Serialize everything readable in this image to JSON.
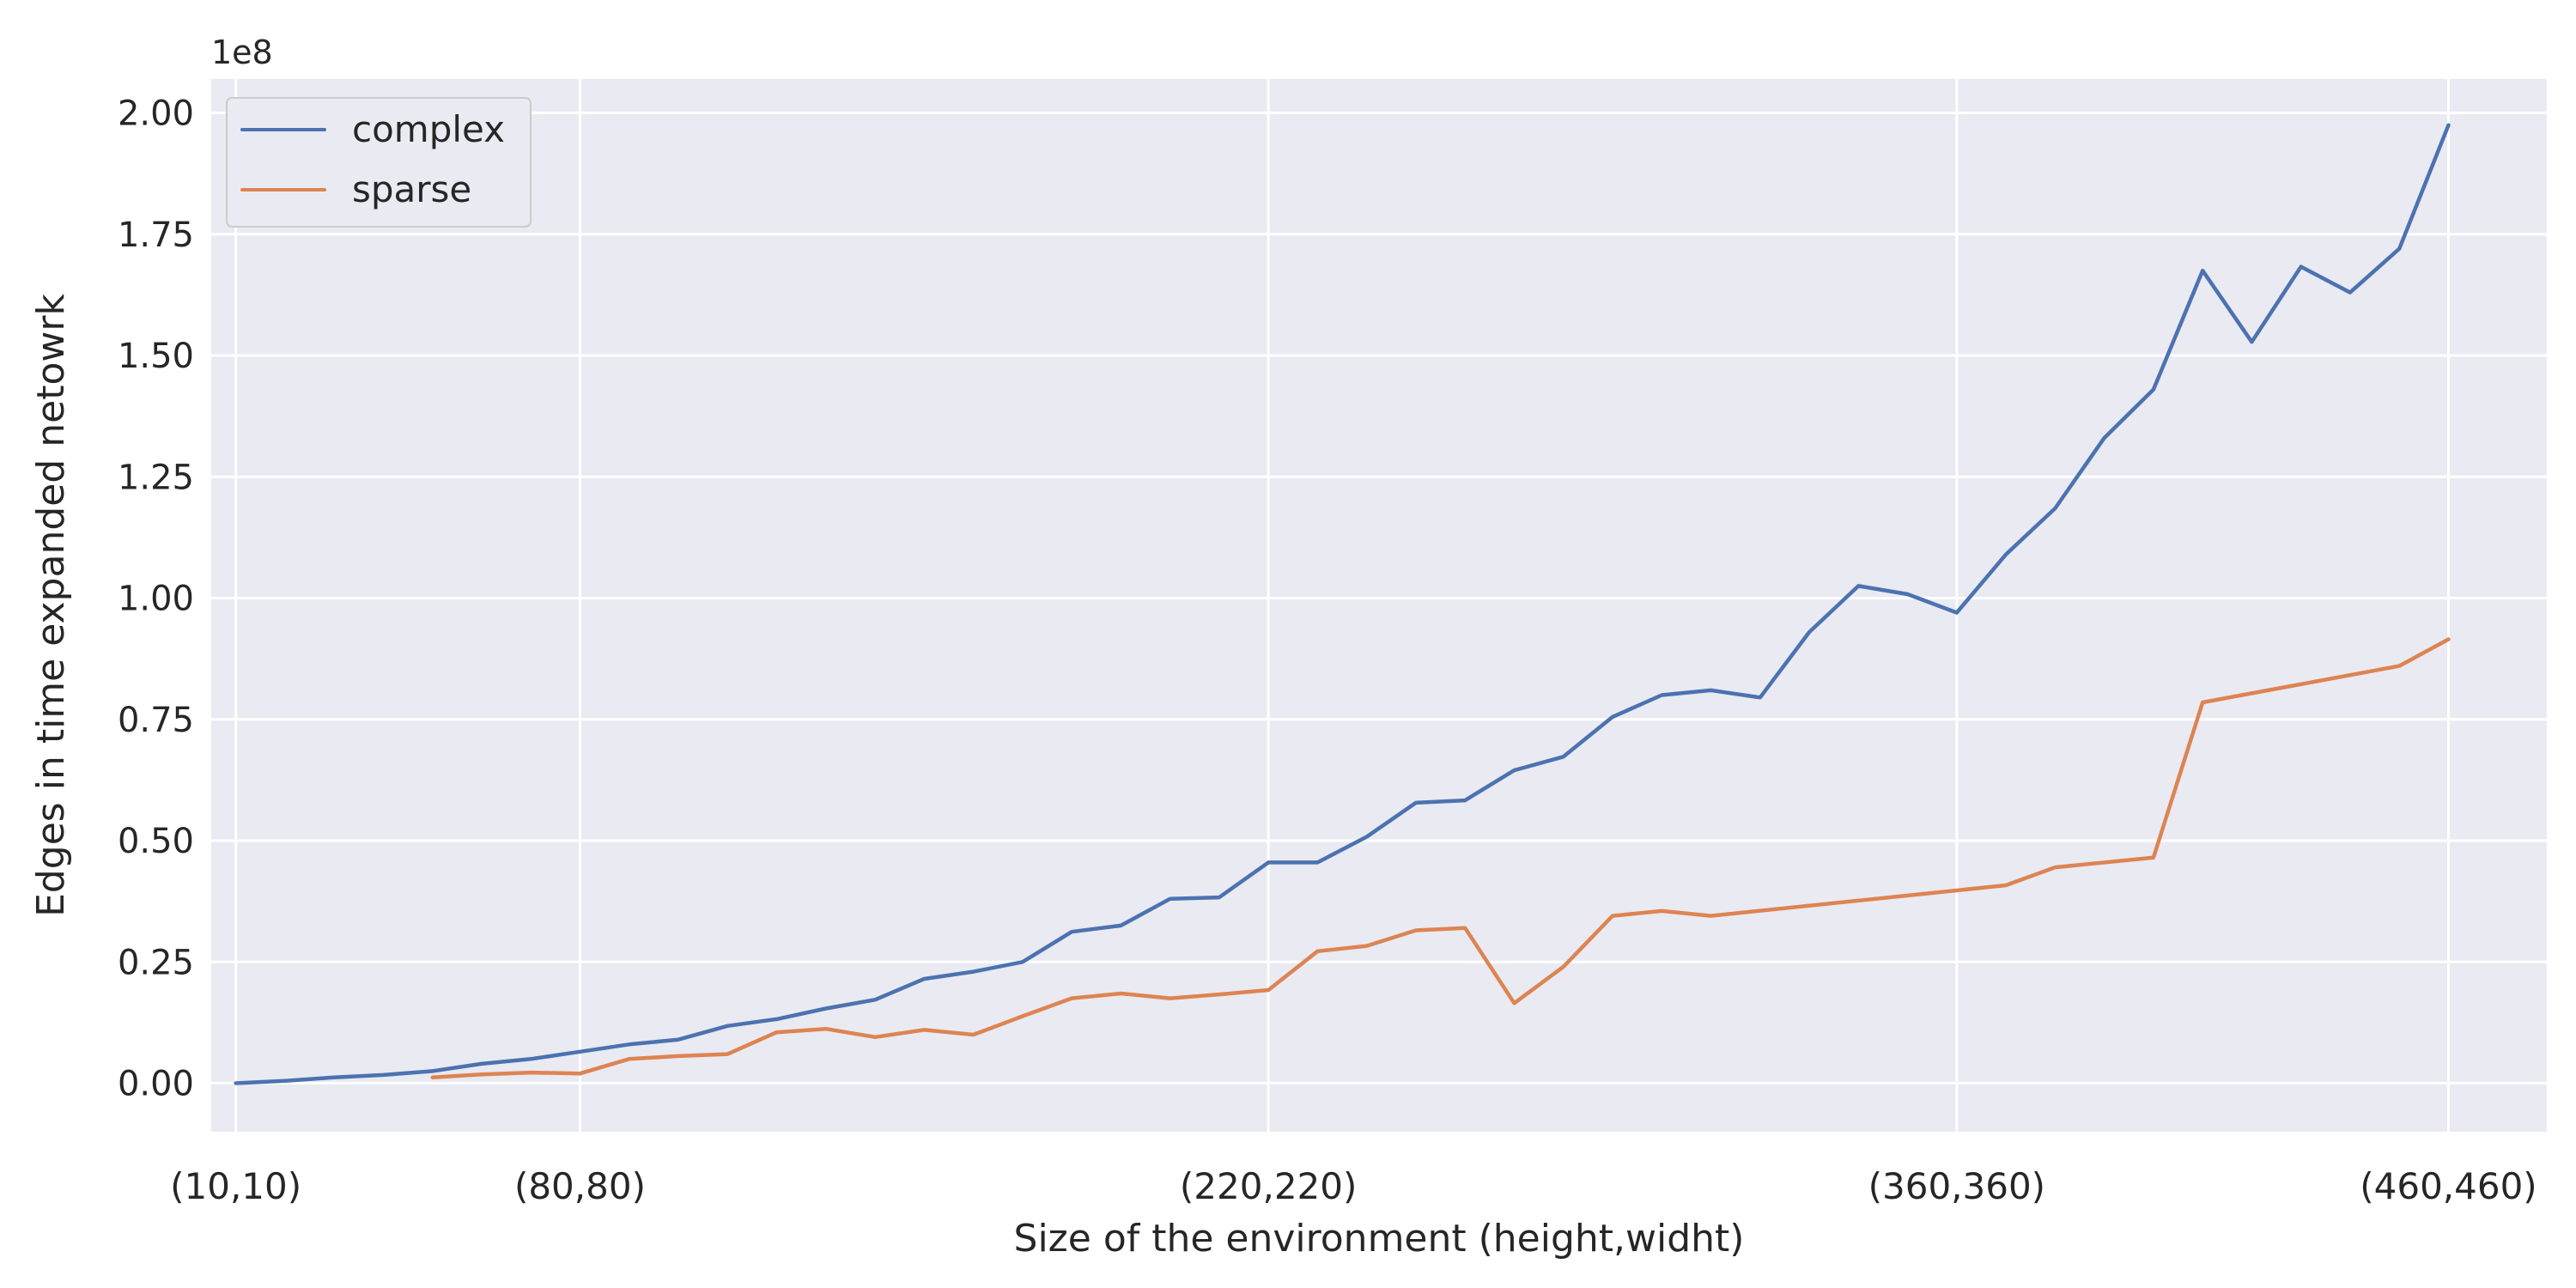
{
  "chart_data": {
    "type": "line",
    "title": "",
    "xlabel": "Size of the environment (height,widht)",
    "ylabel": "Edges in time expanded netowrk",
    "y_offset_label": "1e8",
    "xlim": [
      5,
      480
    ],
    "ylim": [
      -0.1,
      2.07
    ],
    "grid": true,
    "legend_position": "top-left",
    "x_ticks": [
      {
        "x": 10,
        "label": "(10,10)"
      },
      {
        "x": 80,
        "label": "(80,80)"
      },
      {
        "x": 220,
        "label": "(220,220)"
      },
      {
        "x": 360,
        "label": "(360,360)"
      },
      {
        "x": 460,
        "label": "(460,460)"
      }
    ],
    "y_ticks": [
      {
        "y": 0.0,
        "label": "0.00"
      },
      {
        "y": 0.25,
        "label": "0.25"
      },
      {
        "y": 0.5,
        "label": "0.50"
      },
      {
        "y": 0.75,
        "label": "0.75"
      },
      {
        "y": 1.0,
        "label": "1.00"
      },
      {
        "y": 1.25,
        "label": "1.25"
      },
      {
        "y": 1.5,
        "label": "1.50"
      },
      {
        "y": 1.75,
        "label": "1.75"
      },
      {
        "y": 2.0,
        "label": "2.00"
      }
    ],
    "series": [
      {
        "name": "complex",
        "color": "#4c72b0",
        "x": [
          10,
          20,
          30,
          40,
          50,
          60,
          70,
          80,
          90,
          100,
          110,
          120,
          130,
          140,
          150,
          160,
          170,
          180,
          190,
          200,
          210,
          220,
          230,
          240,
          250,
          260,
          270,
          280,
          290,
          300,
          310,
          320,
          330,
          340,
          350,
          360,
          370,
          380,
          390,
          400,
          410,
          420,
          430,
          440,
          450,
          460
        ],
        "y": [
          0.0,
          0.005,
          0.012,
          0.017,
          0.025,
          0.04,
          0.05,
          0.065,
          0.08,
          0.09,
          0.118,
          0.132,
          0.154,
          0.172,
          0.215,
          0.23,
          0.25,
          0.312,
          0.325,
          0.38,
          0.383,
          0.455,
          0.455,
          0.508,
          0.578,
          0.583,
          0.645,
          0.673,
          0.755,
          0.8,
          0.81,
          0.795,
          0.93,
          1.025,
          1.008,
          0.97,
          1.09,
          1.185,
          1.33,
          1.43,
          1.675,
          1.528,
          1.683,
          1.63,
          1.72,
          1.975
        ]
      },
      {
        "name": "sparse",
        "color": "#dd8452",
        "x": [
          50,
          60,
          70,
          80,
          90,
          100,
          110,
          120,
          130,
          140,
          150,
          160,
          170,
          180,
          190,
          200,
          210,
          220,
          230,
          240,
          250,
          260,
          270,
          280,
          290,
          300,
          310,
          370,
          380,
          400,
          410,
          450,
          460
        ],
        "y": [
          0.012,
          0.018,
          0.022,
          0.02,
          0.05,
          0.056,
          0.06,
          0.105,
          0.112,
          0.095,
          0.11,
          0.1,
          0.138,
          0.175,
          0.185,
          0.175,
          0.183,
          0.192,
          0.272,
          0.283,
          0.315,
          0.32,
          0.165,
          0.24,
          0.345,
          0.355,
          0.345,
          0.408,
          0.445,
          0.465,
          0.785,
          0.86,
          0.915
        ]
      }
    ]
  }
}
